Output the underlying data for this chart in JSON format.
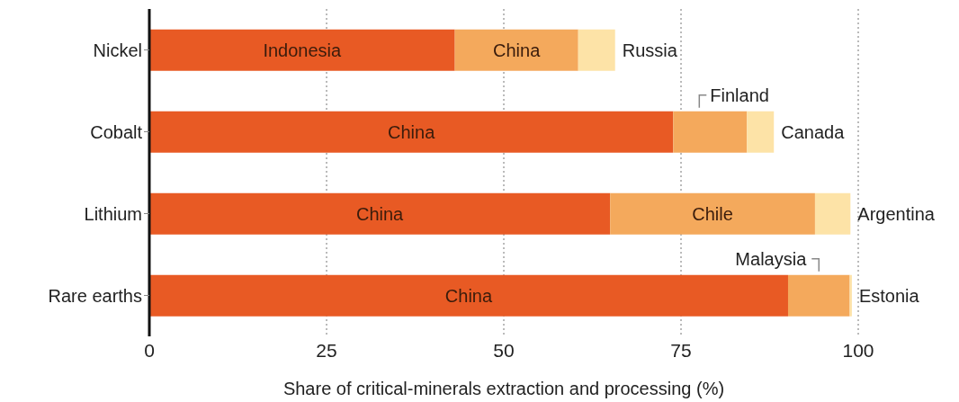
{
  "chart_data": {
    "type": "bar",
    "orientation": "horizontal",
    "stacked": true,
    "xlabel": "Share of critical-minerals extraction and processing (%)",
    "categories": [
      "Nickel",
      "Cobalt",
      "Lithium",
      "Rare earths"
    ],
    "series": [
      {
        "color": "#e85a24",
        "values": [
          43.1,
          73.9,
          65.0,
          90.1
        ],
        "value_labels": [
          "Indonesia",
          "China",
          "China",
          "China"
        ]
      },
      {
        "color": "#f4a95c",
        "values": [
          17.4,
          10.4,
          28.9,
          8.7
        ],
        "value_labels": [
          "China",
          "Finland",
          "Chile",
          "Malaysia"
        ]
      },
      {
        "color": "#fde3a7",
        "values": [
          5.2,
          3.8,
          5.0,
          0.3
        ],
        "value_labels": [
          "Russia",
          "Canada",
          "Argentina",
          "Estonia"
        ]
      }
    ],
    "xlim": [
      0,
      100
    ],
    "xticks": [
      0,
      25,
      50,
      75,
      100
    ],
    "grid": "x"
  }
}
